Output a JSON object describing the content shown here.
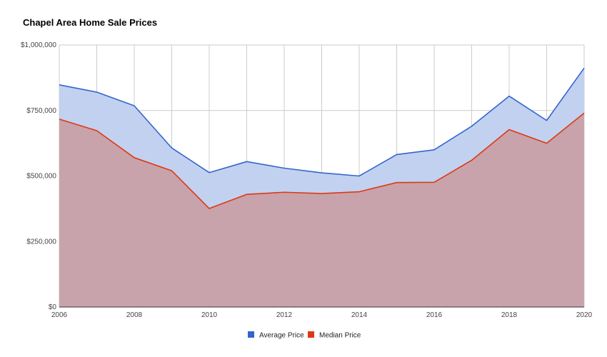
{
  "chart_data": {
    "type": "area",
    "title": "Chapel Area Home Sale Prices",
    "xlabel": "",
    "ylabel": "",
    "x": [
      2006,
      2007,
      2008,
      2009,
      2010,
      2011,
      2012,
      2013,
      2014,
      2015,
      2016,
      2017,
      2018,
      2019,
      2020
    ],
    "xlim": [
      2006,
      2020
    ],
    "ylim": [
      0,
      1000000
    ],
    "x_ticks": [
      "2006",
      "2008",
      "2010",
      "2012",
      "2014",
      "2016",
      "2018",
      "2020"
    ],
    "y_ticks": [
      "$0",
      "$250,000",
      "$500,000",
      "$750,000",
      "$1,000,000"
    ],
    "grid": true,
    "legend_position": "bottom",
    "series": [
      {
        "name": "Average Price",
        "color": "#3366cc",
        "fill": "#c2d1f0",
        "values": [
          848000,
          820000,
          768000,
          607000,
          513000,
          555000,
          530000,
          512000,
          500000,
          582000,
          600000,
          690000,
          805000,
          712000,
          912000
        ]
      },
      {
        "name": "Median Price",
        "color": "#dc3912",
        "fill": "#c9a3ab",
        "values": [
          717000,
          673000,
          570000,
          520000,
          376000,
          430000,
          438000,
          433000,
          440000,
          475000,
          476000,
          560000,
          677000,
          625000,
          740000
        ]
      }
    ]
  }
}
